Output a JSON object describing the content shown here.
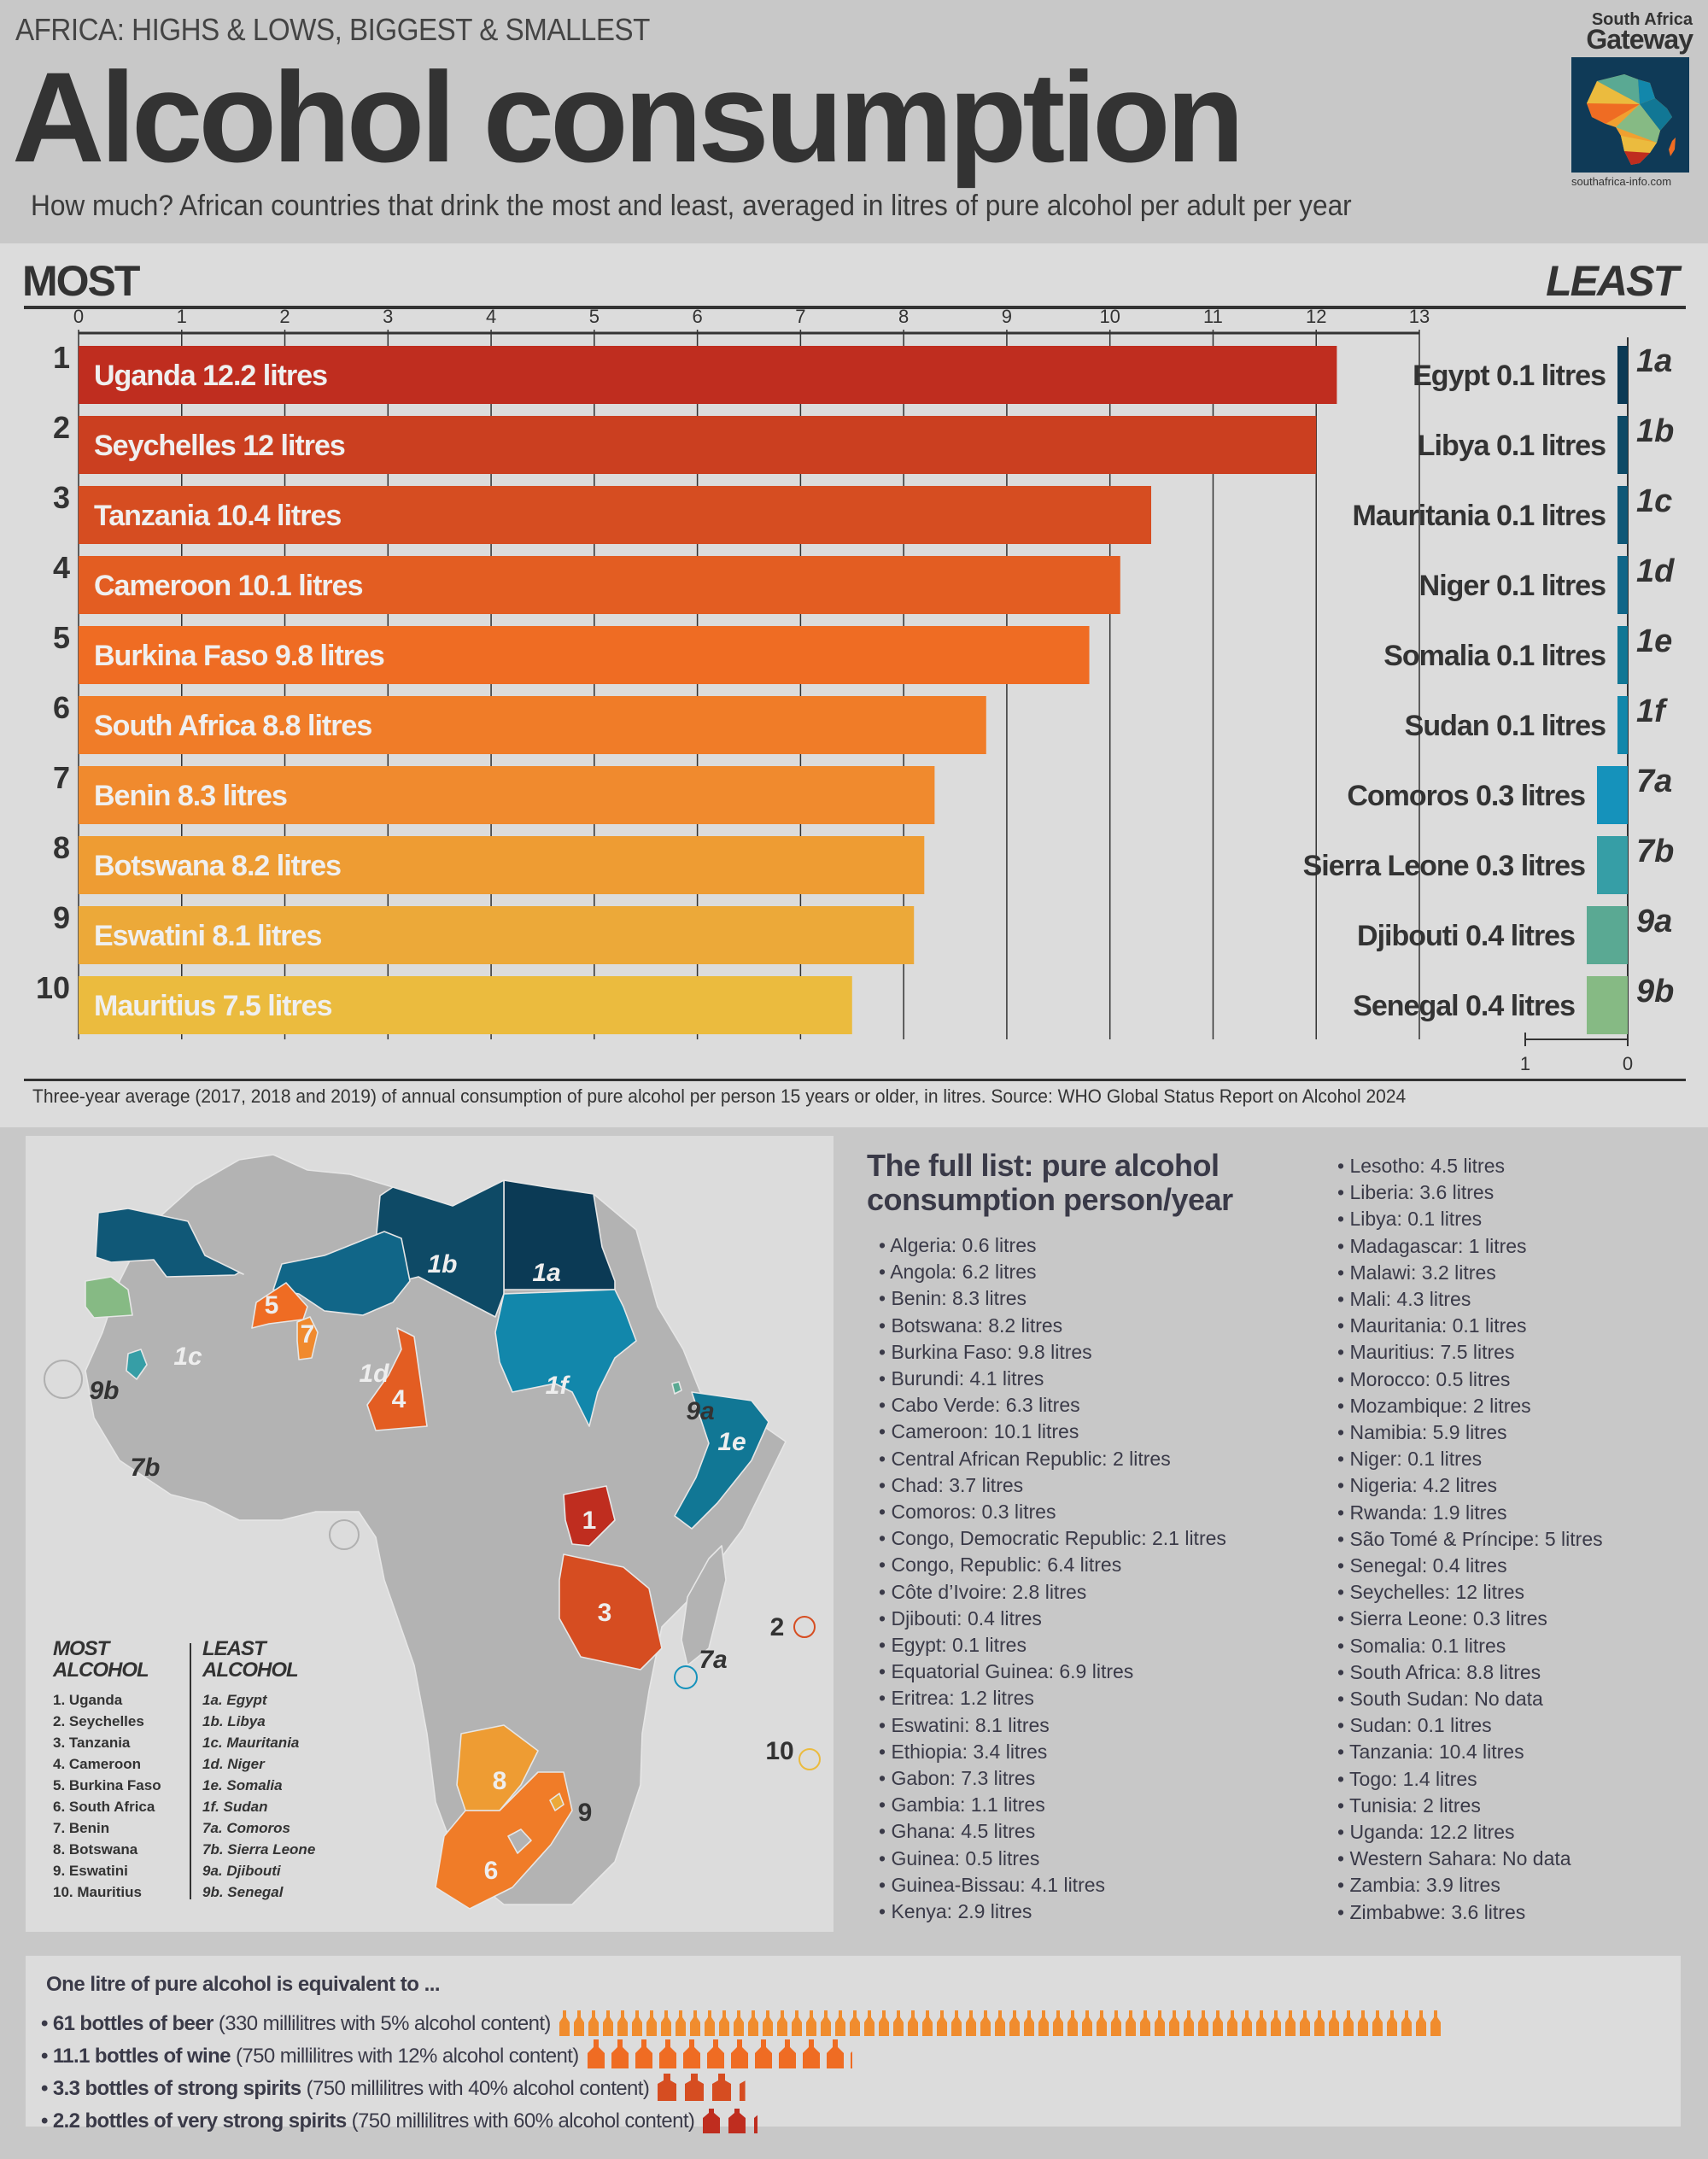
{
  "header": {
    "kicker": "AFRICA: HIGHS & LOWS, BIGGEST & SMALLEST",
    "title": "Alcohol consumption",
    "subtitle": "How much? African countries that drink the most and least, averaged in litres of pure alcohol per adult per year"
  },
  "logo": {
    "line1": "South Africa",
    "line2": "Gateway",
    "url": "southafrica-info.com"
  },
  "chart_data": [
    {
      "type": "bar",
      "orientation": "horizontal",
      "title": "MOST",
      "unit": "litres",
      "xlim": [
        0,
        13
      ],
      "xticks": [
        0,
        1,
        2,
        3,
        4,
        5,
        6,
        7,
        8,
        9,
        10,
        11,
        12,
        13
      ],
      "grid": true,
      "ranks": [
        "1",
        "2",
        "3",
        "4",
        "5",
        "6",
        "7",
        "8",
        "9",
        "10"
      ],
      "categories": [
        "Uganda",
        "Seychelles",
        "Tanzania",
        "Cameroon",
        "Burkina Faso",
        "South Africa",
        "Benin",
        "Botswana",
        "Eswatini",
        "Mauritius"
      ],
      "values": [
        12.2,
        12,
        10.4,
        10.1,
        9.8,
        8.8,
        8.3,
        8.2,
        8.1,
        7.5
      ],
      "labels": [
        "Uganda 12.2 litres",
        "Seychelles 12 litres",
        "Tanzania 10.4 litres",
        "Cameroon 10.1 litres",
        "Burkina Faso 9.8 litres",
        "South Africa 8.8 litres",
        "Benin 8.3 litres",
        "Botswana 8.2 litres",
        "Eswatini 8.1 litres",
        "Mauritius 7.5 litres"
      ],
      "colors": [
        "#bf2d1f",
        "#cb3f20",
        "#d64d21",
        "#e35d22",
        "#ef6c23",
        "#f07c28",
        "#f08a2e",
        "#ee9c33",
        "#eca939",
        "#ebbb3e"
      ]
    },
    {
      "type": "bar",
      "orientation": "horizontal-reversed",
      "title": "LEAST",
      "unit": "litres",
      "xlim": [
        0,
        1
      ],
      "xticks": [
        1,
        0
      ],
      "codes": [
        "1a",
        "1b",
        "1c",
        "1d",
        "1e",
        "1f",
        "7a",
        "7b",
        "9a",
        "9b"
      ],
      "categories": [
        "Egypt",
        "Libya",
        "Mauritania",
        "Niger",
        "Somalia",
        "Sudan",
        "Comoros",
        "Sierra Leone",
        "Djibouti",
        "Senegal"
      ],
      "values": [
        0.1,
        0.1,
        0.1,
        0.1,
        0.1,
        0.1,
        0.3,
        0.3,
        0.4,
        0.4
      ],
      "labels": [
        "Egypt 0.1 litres",
        "Libya 0.1 litres",
        "Mauritania 0.1 litres",
        "Niger 0.1 litres",
        "Somalia 0.1 litres",
        "Sudan 0.1 litres",
        "Comoros 0.3 litres",
        "Sierra Leone 0.3 litres",
        "Djibouti 0.4 litres",
        "Senegal 0.4 litres"
      ],
      "colors": [
        "#0b3a55",
        "#0e4a66",
        "#105877",
        "#116688",
        "#117795",
        "#1287ab",
        "#1592bb",
        "#369ea6",
        "#5aa993",
        "#86ba84"
      ]
    }
  ],
  "footnote": "Three-year average (2017, 2018 and 2019) of annual consumption of pure alcohol per person 15 years or older, in litres. Source: WHO Global Status Report on Alcohol 2024",
  "map": {
    "labels": {
      "egypt": "1a",
      "libya": "1b",
      "mauritania": "1c",
      "niger": "1d",
      "somalia": "1e",
      "sudan": "1f",
      "comoros": "7a",
      "sierra_leone": "7b",
      "djibouti": "9a",
      "senegal": "9b",
      "uganda": "1",
      "seychelles": "2",
      "tanzania": "3",
      "cameroon": "4",
      "burkina_faso": "5",
      "south_africa": "6",
      "benin": "7",
      "botswana": "8",
      "eswatini": "9",
      "mauritius": "10"
    },
    "legend_most_title_1": "MOST",
    "legend_most_title_2": "ALCOHOL",
    "legend_least_title_1": "LEAST",
    "legend_least_title_2": "ALCOHOL",
    "legend_most": [
      "1. Uganda",
      "2. Seychelles",
      "3. Tanzania",
      "4. Cameroon",
      "5. Burkina Faso",
      "6. South Africa",
      "7. Benin",
      "8. Botswana",
      "9. Eswatini",
      "10. Mauritius"
    ],
    "legend_least": [
      "1a. Egypt",
      "1b. Libya",
      "1c. Mauritania",
      "1d. Niger",
      "1e. Somalia",
      "1f. Sudan",
      "7a. Comoros",
      "7b. Sierra Leone",
      "9a. Djibouti",
      "9b. Senegal"
    ]
  },
  "full_list": {
    "title_line1": "The full list: pure alcohol",
    "title_line2": "consumption person/year",
    "column1": [
      "Algeria: 0.6 litres",
      "Angola: 6.2 litres",
      "Benin: 8.3 litres",
      "Botswana: 8.2 litres",
      "Burkina Faso: 9.8 litres",
      "Burundi: 4.1 litres",
      "Cabo Verde: 6.3 litres",
      "Cameroon: 10.1 litres",
      "Central African Republic: 2 litres",
      "Chad: 3.7 litres",
      "Comoros: 0.3 litres",
      "Congo, Democratic Republic: 2.1 litres",
      "Congo, Republic: 6.4 litres",
      "Côte d’Ivoire: 2.8 litres",
      "Djibouti: 0.4 litres",
      "Egypt: 0.1 litres",
      "Equatorial Guinea: 6.9 litres",
      "Eritrea: 1.2 litres",
      "Eswatini: 8.1 litres",
      "Ethiopia: 3.4 litres",
      "Gabon: 7.3 litres",
      "Gambia: 1.1 litres",
      "Ghana: 4.5 litres",
      "Guinea: 0.5 litres",
      "Guinea-Bissau: 4.1 litres",
      "Kenya: 2.9 litres"
    ],
    "column2": [
      "Lesotho: 4.5 litres",
      "Liberia: 3.6 litres",
      "Libya: 0.1 litres",
      "Madagascar: 1 litres",
      "Malawi: 3.2 litres",
      "Mali: 4.3 litres",
      "Mauritania: 0.1 litres",
      "Mauritius: 7.5 litres",
      "Morocco: 0.5 litres",
      "Mozambique: 2 litres",
      "Namibia: 5.9 litres",
      "Niger: 0.1 litres",
      "Nigeria: 4.2 litres",
      "Rwanda: 1.9 litres",
      "São Tomé & Príncipe: 5 litres",
      "Senegal: 0.4 litres",
      "Seychelles: 12 litres",
      "Sierra Leone: 0.3 litres",
      "Somalia: 0.1 litres",
      "South Africa: 8.8 litres",
      "South Sudan: No data",
      "Sudan: 0.1 litres",
      "Tanzania: 10.4 litres",
      "Togo: 1.4 litres",
      "Tunisia: 2 litres",
      "Uganda: 12.2 litres",
      "Western Sahara: No data",
      "Zambia: 3.9 litres",
      "Zimbabwe: 3.6 litres"
    ]
  },
  "equivalents": {
    "title": "One litre of pure alcohol is equivalent to ...",
    "rows": [
      {
        "bold": "• 61 bottles of beer",
        "detail": " (330 millilitres with 5% alcohol content)",
        "count": 61,
        "color": "#f08c2e",
        "kind": "beer"
      },
      {
        "bold": "• 11.1 bottles of wine",
        "detail": " (750 millilitres with 12% alcohol content)",
        "count": 11.1,
        "color": "#ef6c23",
        "kind": "wine"
      },
      {
        "bold": "• 3.3 bottles of strong spirits",
        "detail": " (750 millilitres with 40% alcohol content)",
        "count": 3.3,
        "color": "#d64d21",
        "kind": "spirits"
      },
      {
        "bold": "• 2.2 bottles of very strong spirits",
        "detail": " (750 millilitres with 60% alcohol content)",
        "count": 2.2,
        "color": "#bf2d1f",
        "kind": "strong"
      }
    ]
  }
}
